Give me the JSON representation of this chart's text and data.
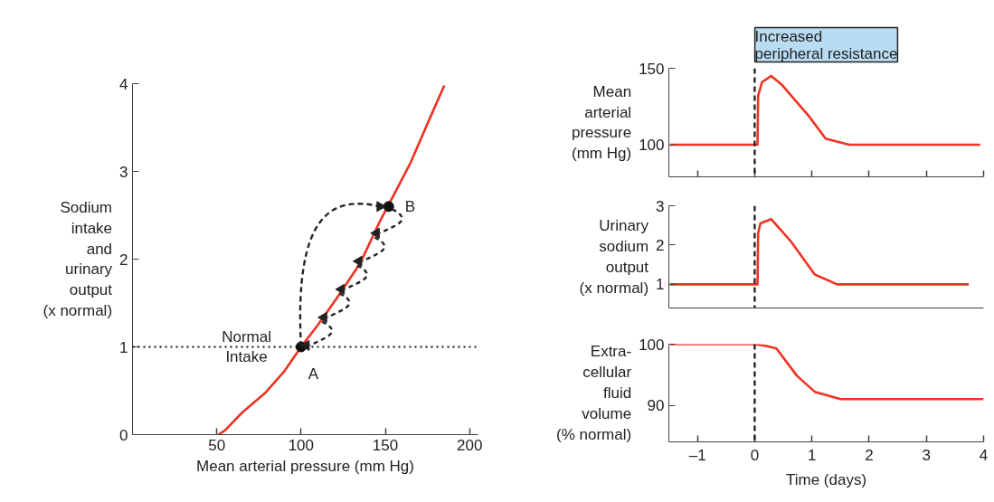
{
  "chart_data": [
    {
      "type": "line",
      "xlabel": "Mean arterial pressure (mm Hg)",
      "ylabel": "Sodium\nintake\nand\nurinary\noutput\n(x normal)",
      "xlim": [
        0,
        205
      ],
      "xticks": [
        50,
        100,
        150,
        200
      ],
      "ylim": [
        0,
        4
      ],
      "yticks": [
        0,
        1,
        2,
        3,
        4
      ],
      "grid": false,
      "series": [
        {
          "color": "#ee3322",
          "x": [
            51,
            55,
            65,
            79,
            90,
            100,
            110,
            121,
            135,
            147,
            152,
            165,
            177,
            185
          ],
          "values": [
            0,
            0.05,
            0.25,
            0.48,
            0.72,
            1.0,
            1.25,
            1.55,
            1.95,
            2.44,
            2.62,
            3.1,
            3.63,
            3.98
          ]
        },
        {
          "type": "scatter",
          "marker": "circle",
          "color": "#111111",
          "x": [
            100,
            152
          ],
          "values": [
            1,
            2.6
          ]
        }
      ],
      "ref_lines": [
        {
          "axis": "y",
          "value": 1,
          "label": "Normal\nIntake",
          "line_style": "dotted",
          "color": "#111111"
        }
      ],
      "annotations": [
        {
          "text": "A",
          "x": 100,
          "y": 1
        },
        {
          "text": "B",
          "x": 152,
          "y": 2.6
        }
      ]
    },
    {
      "type": "line",
      "ylabel": "Mean\narterial\npressure\n(mm Hg)",
      "xlim": [
        -1.5,
        4
      ],
      "xticks": [
        {
          "value": -1,
          "label": null
        },
        {
          "value": 0,
          "label": null
        },
        {
          "value": 1,
          "label": null
        },
        {
          "value": 2,
          "label": null
        },
        {
          "value": 3,
          "label": null
        },
        {
          "value": 4,
          "label": null
        }
      ],
      "ylim": [
        79,
        150
      ],
      "yticks": [
        100,
        150
      ],
      "tick_labels": "y",
      "grid": false,
      "series": [
        {
          "color": "#ee3322",
          "x": [
            -1.48,
            0.05,
            0.06,
            0.13,
            0.29,
            0.48,
            0.94,
            1.24,
            1.65,
            3.94
          ],
          "values": [
            100,
            100,
            132,
            141,
            145,
            139,
            119,
            104,
            100,
            100
          ]
        }
      ],
      "ref_lines": [
        {
          "axis": "x",
          "value": 0,
          "line_style": "dashed",
          "color": "#111111"
        }
      ],
      "annotations": [
        "Increased\nperipheral resistance"
      ]
    },
    {
      "type": "line",
      "ylabel": "Urinary\nsodium\noutput\n(x normal)",
      "xlim": [
        -1.5,
        4
      ],
      "ylim": [
        0.4,
        3
      ],
      "yticks": [
        1,
        2,
        3
      ],
      "tick_labels": "y",
      "grid": false,
      "series": [
        {
          "color": "#ee3322",
          "x": [
            -1.48,
            0.05,
            0.06,
            0.1,
            0.29,
            0.64,
            1.05,
            1.44,
            3.74
          ],
          "values": [
            1,
            1,
            2.3,
            2.55,
            2.66,
            2.08,
            1.25,
            1.0,
            1.0
          ]
        }
      ],
      "ref_lines": [
        {
          "axis": "x",
          "value": 0,
          "line_style": "dashed",
          "color": "#111111"
        }
      ]
    },
    {
      "type": "line",
      "xlabel": "Time (days)",
      "ylabel": "Extra-\ncellular\nfluid\nvolume\n(% normal)",
      "xlim": [
        -1.5,
        4
      ],
      "xticks": [
        {
          "value": -1,
          "label": "–1"
        },
        0,
        1,
        2,
        3,
        4
      ],
      "ylim": [
        84,
        100
      ],
      "yticks": [
        90,
        100
      ],
      "grid": false,
      "series": [
        {
          "color": "#ee3322",
          "x": [
            -1.48,
            0,
            0.2,
            0.38,
            0.74,
            1.05,
            1.5,
            4
          ],
          "values": [
            100,
            100,
            99.7,
            99.3,
            94.8,
            92.2,
            91.0,
            91.0
          ]
        }
      ],
      "ref_lines": [
        {
          "axis": "x",
          "value": 0,
          "line_style": "dashed",
          "color": "#111111"
        }
      ]
    }
  ]
}
